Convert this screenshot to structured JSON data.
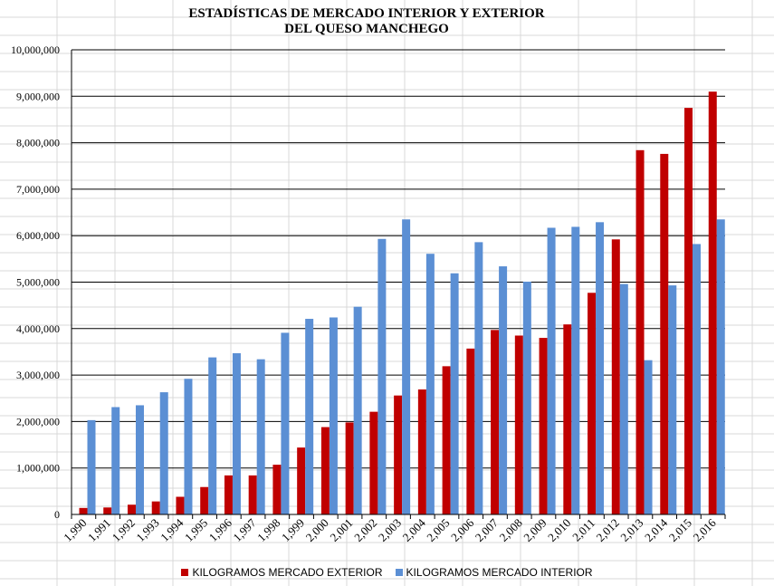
{
  "chart_data": {
    "type": "bar",
    "title": [
      "ESTADÍSTICAS DE MERCADO INTERIOR Y EXTERIOR",
      "DEL QUESO MANCHEGO"
    ],
    "xlabel": "",
    "ylabel": "",
    "ylim": [
      0,
      10000000
    ],
    "yticks": [
      0,
      1000000,
      2000000,
      3000000,
      4000000,
      5000000,
      6000000,
      7000000,
      8000000,
      9000000,
      10000000
    ],
    "ytick_labels": [
      "0",
      "1,000,000",
      "2,000,000",
      "3,000,000",
      "4,000,000",
      "5,000,000",
      "6,000,000",
      "7,000,000",
      "8,000,000",
      "9,000,000",
      "10,000,000"
    ],
    "categories": [
      "1,990",
      "1,991",
      "1,992",
      "1,993",
      "1,994",
      "1,995",
      "1,996",
      "1,997",
      "1,998",
      "1,999",
      "2,000",
      "2,001",
      "2,002",
      "2,003",
      "2,004",
      "2,005",
      "2,006",
      "2,007",
      "2,008",
      "2,009",
      "2,010",
      "2,011",
      "2,012",
      "2,013",
      "2,014",
      "2,015",
      "2,016"
    ],
    "series": [
      {
        "name": "KILOGRAMOS MERCADO EXTERIOR",
        "color": "#c00000",
        "values": [
          140000,
          150000,
          210000,
          280000,
          380000,
          590000,
          840000,
          840000,
          1070000,
          1440000,
          1880000,
          1980000,
          2210000,
          2560000,
          2690000,
          3190000,
          3570000,
          3970000,
          3850000,
          3800000,
          4090000,
          4770000,
          5920000,
          7840000,
          7760000,
          8750000,
          9100000
        ]
      },
      {
        "name": "KILOGRAMOS MERCADO INTERIOR",
        "color": "#5b8fd4",
        "values": [
          2030000,
          2310000,
          2350000,
          2630000,
          2920000,
          3380000,
          3470000,
          3340000,
          3910000,
          4210000,
          4240000,
          4470000,
          5930000,
          6350000,
          5610000,
          5190000,
          5860000,
          5340000,
          5010000,
          6170000,
          6190000,
          6290000,
          4960000,
          3320000,
          4930000,
          5820000,
          6350000
        ]
      }
    ],
    "grid": true,
    "legend_position": "bottom"
  }
}
